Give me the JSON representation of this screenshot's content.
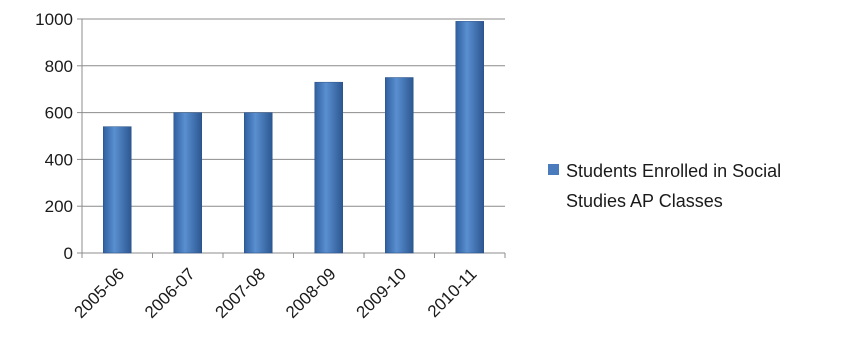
{
  "chart_data": {
    "type": "bar",
    "title": "",
    "xlabel": "",
    "ylabel": "",
    "categories": [
      "2005-06",
      "2006-07",
      "2007-08",
      "2008-09",
      "2009-10",
      "2010-11"
    ],
    "series": [
      {
        "name": "Students Enrolled in Social Studies AP Classes",
        "values": [
          540,
          600,
          600,
          730,
          750,
          990
        ],
        "color": "#4a7bbd"
      }
    ],
    "ylim": [
      0,
      1000
    ],
    "yticks": [
      0,
      200,
      400,
      600,
      800,
      1000
    ],
    "grid": true,
    "legend": {
      "position": "right",
      "lines": [
        "Students Enrolled in Social",
        "Studies AP Classes"
      ]
    }
  }
}
